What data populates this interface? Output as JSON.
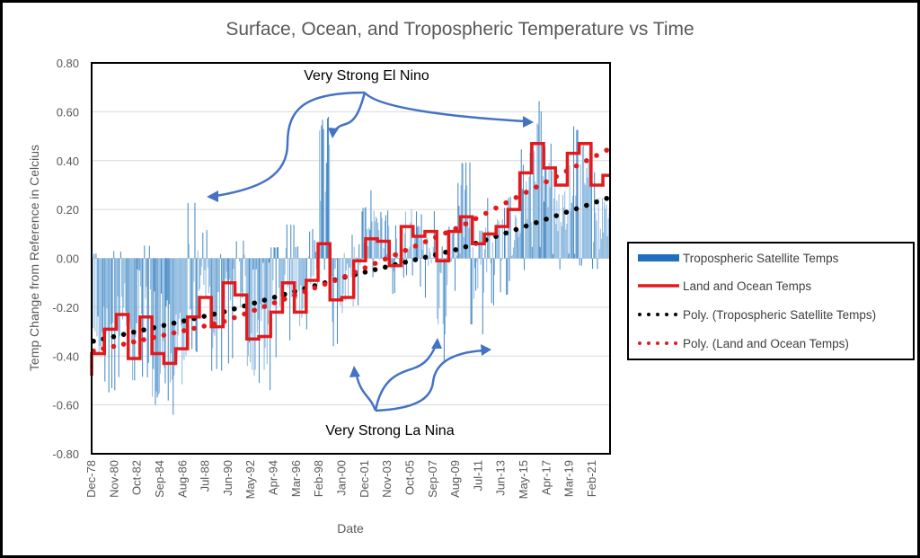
{
  "chart_data": {
    "type": "bar",
    "title": "Surface, Ocean, and Tropospheric Temperature vs Time",
    "xlabel": "Date",
    "ylabel": "Temp Change from Reference in Celcius",
    "ylim": [
      -0.8,
      0.8
    ],
    "yticks": [
      0.8,
      0.6,
      0.4,
      0.2,
      0.0,
      -0.2,
      -0.4,
      -0.6,
      -0.8
    ],
    "ytick_labels": [
      "0.80",
      "0.60",
      "0.40",
      "0.20",
      "0.00",
      "-0.20",
      "-0.40",
      "-0.60",
      "-0.80"
    ],
    "xlim_years": [
      1978.92,
      2022.6
    ],
    "xtick_labels": [
      "Dec-78",
      "Nov-80",
      "Oct-82",
      "Sep-84",
      "Aug-86",
      "Jul-88",
      "Jun-90",
      "May-92",
      "Apr-94",
      "Mar-96",
      "Feb-98",
      "Jan-00",
      "Dec-01",
      "Nov-03",
      "Oct-05",
      "Sep-07",
      "Aug-09",
      "Jul-11",
      "Jun-13",
      "May-15",
      "Apr-17",
      "Mar-19",
      "Feb-21"
    ],
    "grid": "horizontal",
    "legend_position": "right",
    "series": [
      {
        "name": "Tropospheric Satellite Temps",
        "kind": "monthly-bars",
        "color": "#5b9bd5",
        "annual_envelope": {
          "years": [
            1979,
            1980,
            1981,
            1982,
            1983,
            1984,
            1985,
            1986,
            1987,
            1988,
            1989,
            1990,
            1991,
            1992,
            1993,
            1994,
            1995,
            1996,
            1997,
            1998,
            1999,
            2000,
            2001,
            2002,
            2003,
            2004,
            2005,
            2006,
            2007,
            2008,
            2009,
            2010,
            2011,
            2012,
            2013,
            2014,
            2015,
            2016,
            2017,
            2018,
            2019,
            2020,
            2021,
            2022
          ],
          "mean": [
            -0.3,
            -0.22,
            -0.2,
            -0.38,
            -0.22,
            -0.45,
            -0.48,
            -0.38,
            -0.1,
            -0.05,
            -0.25,
            -0.12,
            -0.1,
            -0.35,
            -0.33,
            -0.2,
            -0.05,
            -0.18,
            -0.02,
            0.4,
            -0.12,
            -0.1,
            0.06,
            0.12,
            0.08,
            0.02,
            0.12,
            0.06,
            0.04,
            -0.18,
            0.1,
            0.22,
            -0.05,
            0.04,
            0.08,
            0.1,
            0.22,
            0.45,
            0.3,
            0.2,
            0.32,
            0.38,
            0.15,
            0.18
          ],
          "peak": [
            0.02,
            0.03,
            0.03,
            -0.05,
            0.06,
            -0.15,
            -0.2,
            0.02,
            0.25,
            0.12,
            0.02,
            0.18,
            0.08,
            -0.05,
            -0.02,
            0.05,
            0.15,
            0.05,
            0.12,
            0.62,
            0.18,
            0.1,
            0.22,
            0.32,
            0.2,
            0.15,
            0.3,
            0.2,
            0.2,
            0.05,
            0.35,
            0.4,
            0.12,
            0.25,
            0.22,
            0.28,
            0.45,
            0.7,
            0.48,
            0.4,
            0.6,
            0.55,
            0.4,
            0.35
          ],
          "trough": [
            -0.42,
            -0.55,
            -0.55,
            -0.55,
            -0.5,
            -0.67,
            -0.65,
            -0.62,
            -0.4,
            -0.35,
            -0.48,
            -0.45,
            -0.4,
            -0.58,
            -0.6,
            -0.45,
            -0.35,
            -0.42,
            -0.3,
            -0.05,
            -0.4,
            -0.4,
            -0.22,
            -0.08,
            -0.15,
            -0.15,
            -0.08,
            -0.12,
            -0.18,
            -0.5,
            -0.15,
            -0.3,
            -0.35,
            -0.2,
            -0.15,
            -0.1,
            -0.05,
            0.05,
            0.02,
            -0.05,
            0.02,
            -0.03,
            -0.05,
            -0.02
          ]
        }
      },
      {
        "name": "Land and Ocean Temps",
        "kind": "annual-step",
        "color": "#e31a1c",
        "years": [
          1979,
          1980,
          1981,
          1982,
          1983,
          1984,
          1985,
          1986,
          1987,
          1988,
          1989,
          1990,
          1991,
          1992,
          1993,
          1994,
          1995,
          1996,
          1997,
          1998,
          1999,
          2000,
          2001,
          2002,
          2003,
          2004,
          2005,
          2006,
          2007,
          2008,
          2009,
          2010,
          2011,
          2012,
          2013,
          2014,
          2015,
          2016,
          2017,
          2018,
          2019,
          2020,
          2021,
          2022
        ],
        "values": [
          -0.39,
          -0.29,
          -0.23,
          -0.41,
          -0.24,
          -0.39,
          -0.43,
          -0.37,
          -0.24,
          -0.16,
          -0.28,
          -0.1,
          -0.15,
          -0.33,
          -0.32,
          -0.22,
          -0.1,
          -0.22,
          -0.09,
          0.06,
          -0.17,
          -0.16,
          -0.01,
          0.08,
          0.07,
          -0.03,
          0.13,
          0.09,
          0.11,
          -0.01,
          0.11,
          0.17,
          0.06,
          0.1,
          0.13,
          0.2,
          0.35,
          0.47,
          0.37,
          0.3,
          0.43,
          0.47,
          0.3,
          0.34
        ]
      },
      {
        "name": "Poly. (Tropospheric Satellite Temps)",
        "kind": "trend",
        "color": "#000000",
        "x_years": [
          1979,
          1990,
          2000,
          2010,
          2022.6
        ],
        "values": [
          -0.34,
          -0.22,
          -0.08,
          0.04,
          0.25
        ]
      },
      {
        "name": "Poly. (Land and Ocean Temps)",
        "kind": "trend",
        "color": "#e31a1c",
        "x_years": [
          1979,
          1990,
          2000,
          2010,
          2022.6
        ],
        "values": [
          -0.38,
          -0.26,
          -0.08,
          0.13,
          0.45
        ]
      }
    ],
    "annotations": [
      {
        "text": "Very Strong El Nino",
        "points_to_years": [
          1988.4,
          1998.2,
          2016.1
        ]
      },
      {
        "text": "Very Strong La Nina",
        "points_to_years": [
          1999.0,
          2008.1,
          2011.2
        ]
      }
    ]
  }
}
